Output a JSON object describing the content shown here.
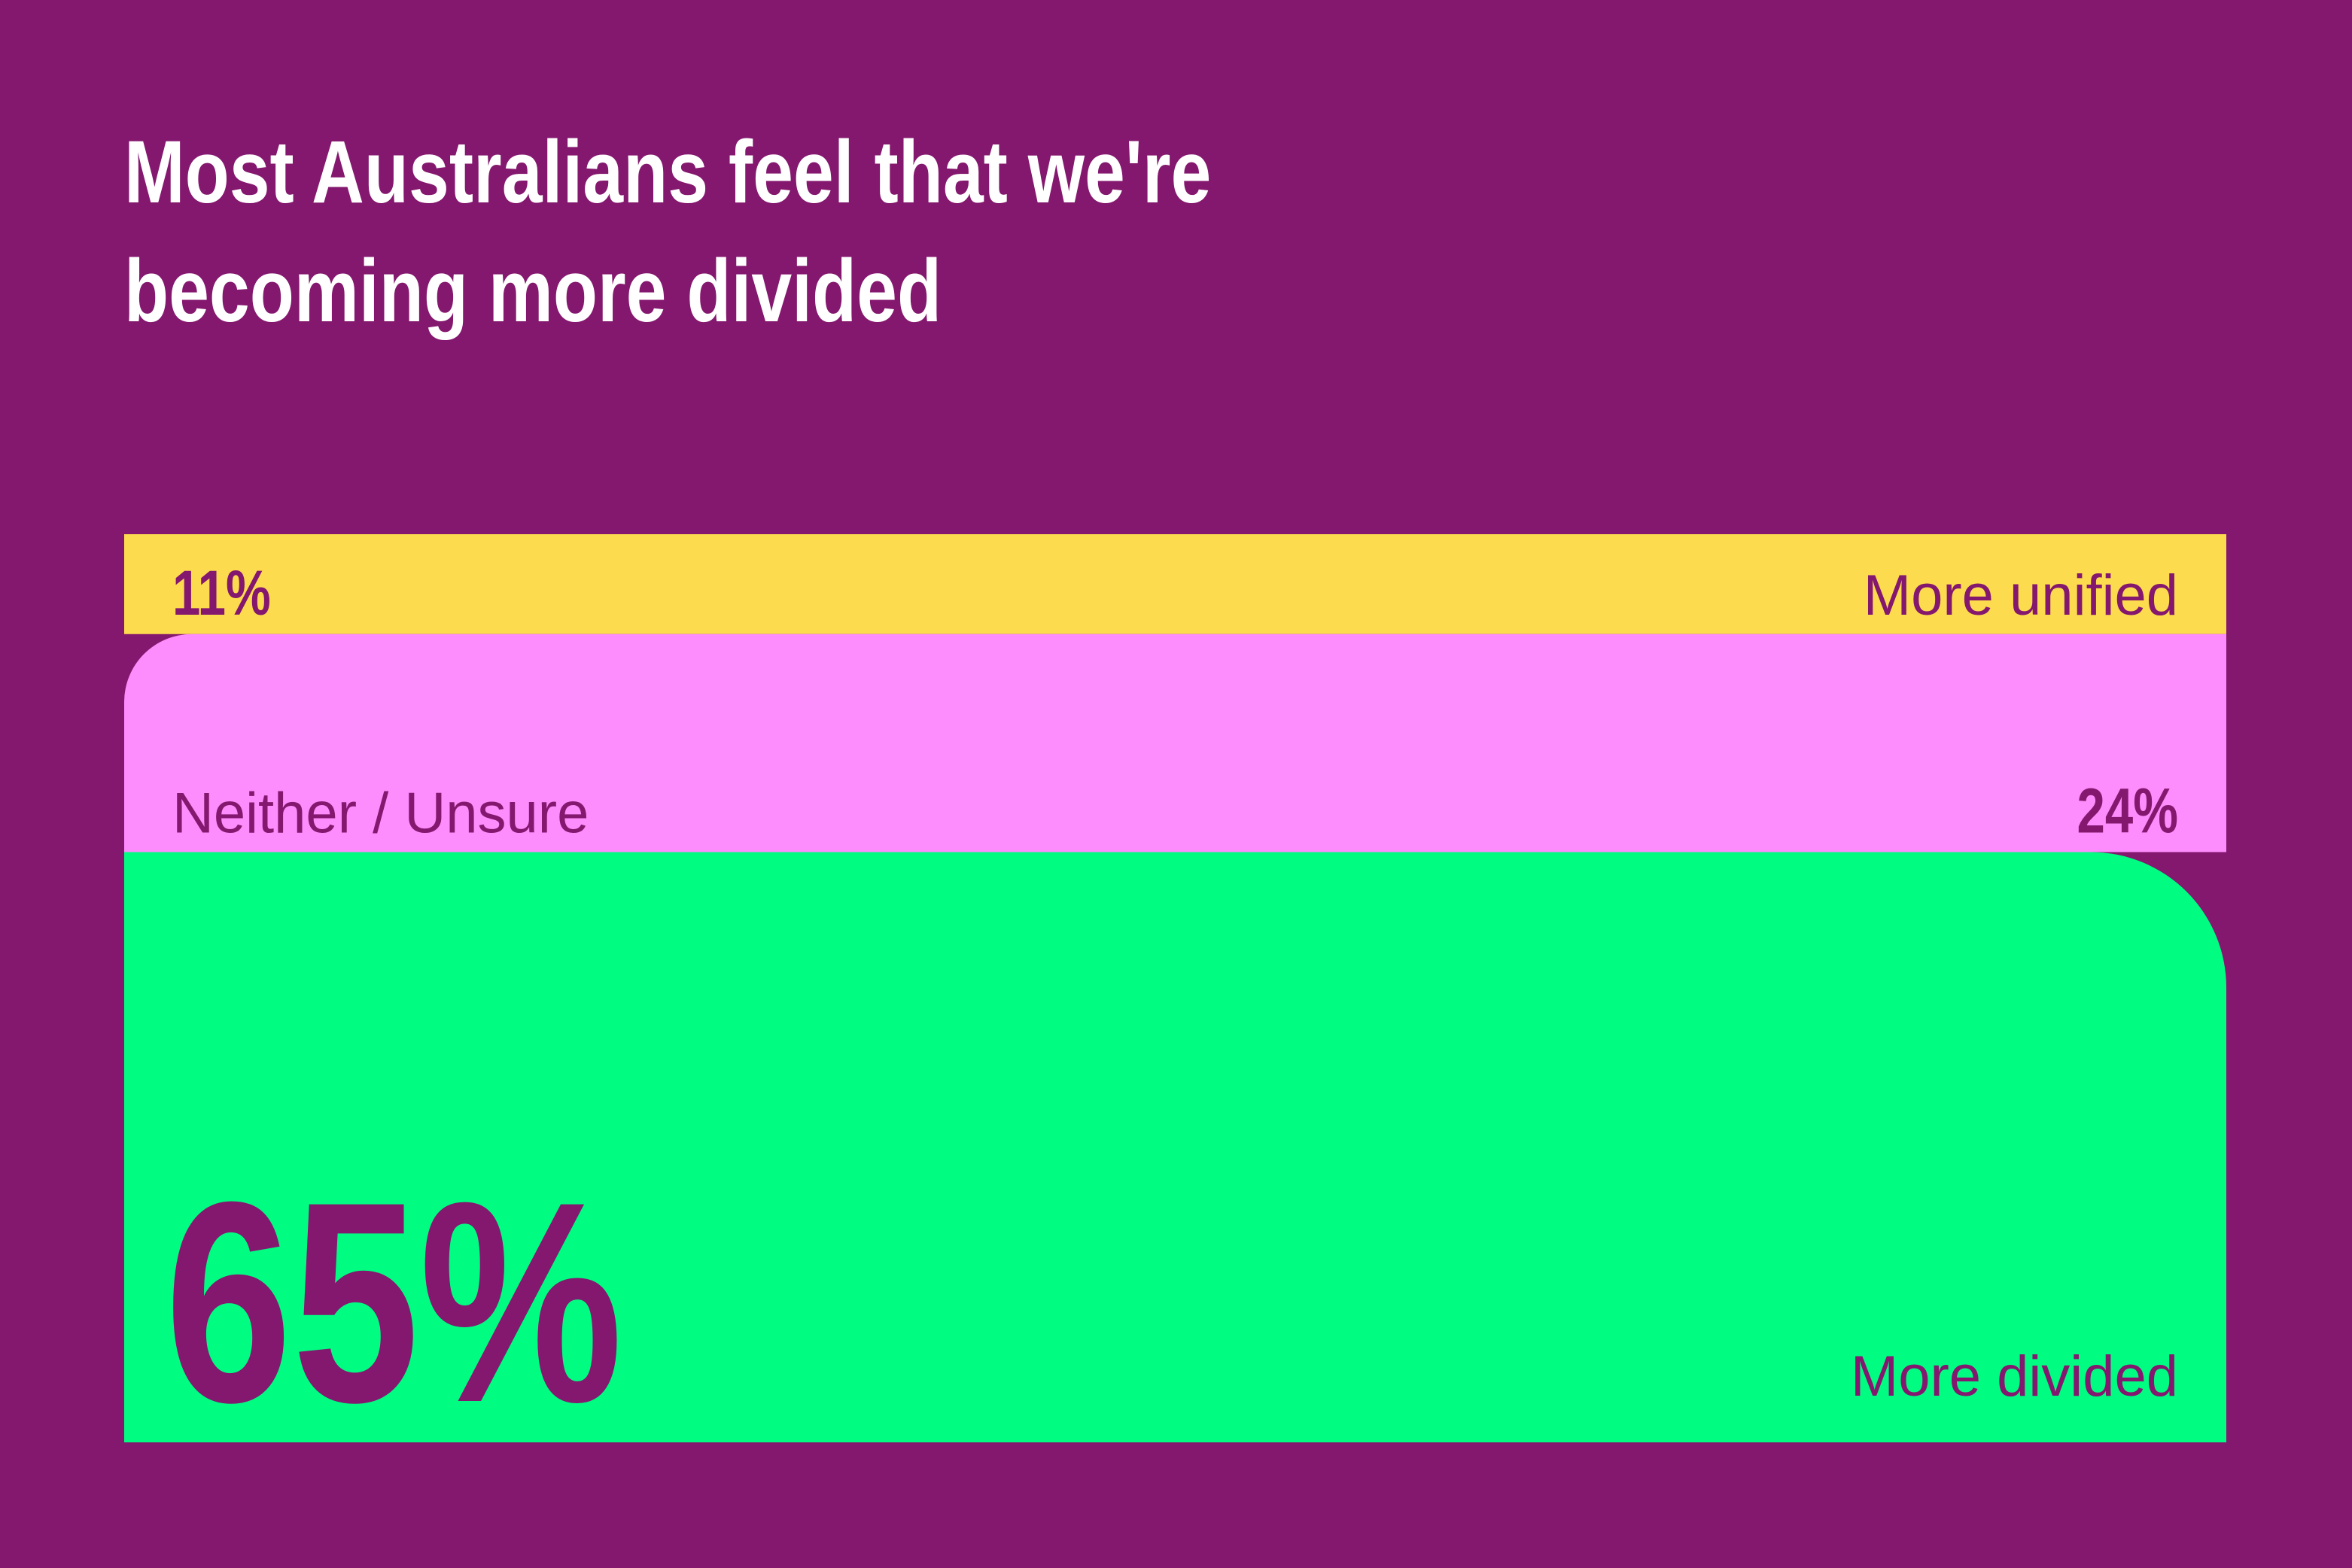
{
  "chart_data": {
    "type": "stacked-block",
    "title": "Most Australians feel that we're becoming more divided",
    "categories": [
      "More unified",
      "Neither / Unsure",
      "More divided"
    ],
    "values": [
      11,
      24,
      65
    ],
    "value_labels": [
      "11%",
      "24%",
      "65%"
    ],
    "colors": [
      "#fddb4f",
      "#fd8cfc",
      "#00fd82"
    ]
  }
}
